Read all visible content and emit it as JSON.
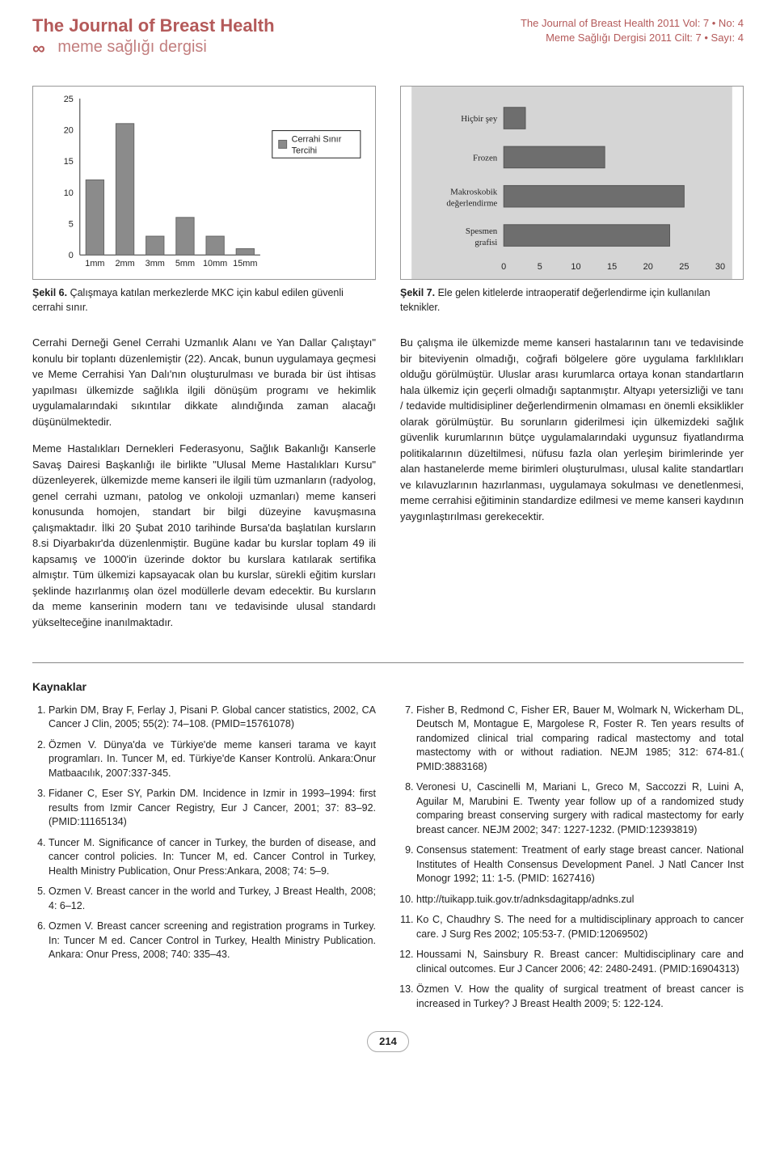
{
  "header": {
    "title_en": "The Journal of Breast Health",
    "title_tr": "meme sağlığı dergisi",
    "right_en": "The Journal of Breast Health 2011 Vol: 7 • No: 4",
    "right_tr": "Meme Sağlığı Dergisi 2011 Cilt: 7 • Sayı: 4"
  },
  "figure6": {
    "type": "bar",
    "orientation": "vertical",
    "categories": [
      "1mm",
      "2mm",
      "3mm",
      "5mm",
      "10mm",
      "15mm"
    ],
    "values": [
      12,
      21,
      3,
      6,
      3,
      1
    ],
    "bar_color": "#8b8b8b",
    "border_color": "#666666",
    "background": "#ffffff",
    "ylim": [
      0,
      25
    ],
    "ytick_step": 5,
    "legend_label": "Cerrahi Sınır Tercihi",
    "legend_box_w": 110,
    "axis_fontsize": 11,
    "caption_bold": "Şekil 6.",
    "caption_text": "Çalışmaya katılan merkezlerde MKC için kabul edilen güvenli cerrahi sınır."
  },
  "figure7": {
    "type": "bar",
    "orientation": "horizontal",
    "categories": [
      "Hiçbir şey",
      "Frozen",
      "Makroskobik değerlendirme",
      "Spesmen grafisi"
    ],
    "values": [
      3,
      14,
      25,
      23
    ],
    "bar_color": "#6e6e6e",
    "border_color": "#555555",
    "background": "#d5d5d5",
    "xlim": [
      0,
      30
    ],
    "xtick_step": 5,
    "axis_fontsize": 11,
    "label_fontfamily": "Georgia, serif",
    "caption_bold": "Şekil 7.",
    "caption_text": "Ele gelen kitlelerde intraoperatif değerlendirme için kullanılan teknikler."
  },
  "body": {
    "p1": "Cerrahi Derneği Genel Cerrahi Uzmanlık Alanı ve Yan Dallar Çalıştayı\" konulu bir toplantı düzenlemiştir (22). Ancak, bunun uygulamaya geçmesi ve Meme Cerrahisi Yan Dalı'nın oluşturulması ve burada bir üst ihtisas yapılması ülkemizde sağlıkla ilgili dönüşüm programı ve hekimlik uygulamalarındaki sıkıntılar dikkate alındığında zaman alacağı düşünülmektedir.",
    "p2": "Meme Hastalıkları Dernekleri Federasyonu, Sağlık Bakanlığı Kanserle Savaş Dairesi Başkanlığı ile birlikte \"Ulusal Meme Hastalıkları Kursu\" düzenleyerek, ülkemizde meme kanseri ile ilgili tüm uzmanların (radyolog, genel cerrahi uzmanı, patolog ve onkoloji uzmanları) meme kanseri konusunda homojen, standart bir bilgi düzeyine kavuşmasına çalışmaktadır. İlki 20 Şubat 2010 tarihinde Bursa'da başlatılan kursların 8.si Diyarbakır'da düzenlenmiştir. Bugüne kadar bu kurslar toplam 49 ili kapsamış ve 1000'in üzerinde doktor bu kurslara katılarak sertifika almıştır. Tüm ülkemizi kapsayacak olan bu kurslar, sürekli eğitim kursları şeklinde hazırlanmış olan özel modüllerle devam edecektir. Bu kursların da meme kanserinin modern tanı ve tedavisinde ulusal standardı yükselteceğine inanılmaktadır.",
    "p3": "Bu çalışma ile ülkemizde meme kanseri hastalarının tanı ve tedavisinde bir biteviyenin olmadığı, coğrafi bölgelere göre uygulama farklılıkları olduğu görülmüştür. Uluslar arası kurumlarca ortaya konan standartların hala ülkemiz için geçerli olmadığı saptanmıştır. Altyapı yetersizliği ve tanı / tedavide multidisipliner değerlendirmenin olmaması en önemli eksiklikler olarak görülmüştür. Bu sorunların giderilmesi için ülkemizdeki sağlık güvenlik kurumlarının bütçe uygulamalarındaki uygunsuz fiyatlandırma politikalarının düzeltilmesi, nüfusu fazla olan yerleşim birimlerinde yer alan hastanelerde meme birimleri oluşturulması, ulusal kalite standartları ve kılavuzlarının hazırlanması, uygulamaya sokulması ve denetlenmesi, meme cerrahisi eğitiminin standardize edilmesi ve meme kanseri kaydının yaygınlaştırılması gerekecektir."
  },
  "references": {
    "title": "Kaynaklar",
    "items": [
      "Parkin DM, Bray F, Ferlay J, Pisani P. Global cancer statistics, 2002, CA Cancer J Clin, 2005; 55(2): 74–108. (PMID=15761078)",
      "Özmen V. Dünya'da ve Türkiye'de meme kanseri tarama ve kayıt programları. In. Tuncer M, ed. Türkiye'de Kanser Kontrolü. Ankara:Onur Matbaacılık, 2007:337-345.",
      "Fidaner C, Eser SY, Parkin DM. Incidence in Izmir in 1993–1994: first results from Izmir Cancer Registry, Eur J Cancer, 2001; 37: 83–92. (PMID:11165134)",
      "Tuncer M. Significance of cancer in Turkey, the burden of disease, and cancer control policies. In: Tuncer M, ed. Cancer Control in Turkey, Health Ministry Publication, Onur Press:Ankara, 2008; 74: 5–9.",
      "Ozmen V. Breast cancer in the world and Turkey, J Breast Health, 2008; 4: 6–12.",
      "Ozmen V. Breast cancer screening and registration programs in Turkey. In: Tuncer M ed. Cancer Control in Turkey, Health Ministry Publication. Ankara: Onur Press, 2008; 740: 335–43.",
      "Fisher B, Redmond C, Fisher ER, Bauer M, Wolmark N, Wickerham DL, Deutsch M, Montague E, Margolese R, Foster R. Ten years results of randomized clinical trial comparing radical mastectomy and total mastectomy with or without radiation. NEJM 1985; 312: 674-81.( PMID:3883168)",
      "Veronesi U, Cascinelli M, Mariani L, Greco M, Saccozzi R, Luini A, Aguilar M, Marubini E. Twenty year follow up of a randomized study comparing breast conserving surgery with radical mastectomy for early breast cancer. NEJM 2002; 347: 1227-1232. (PMID:12393819)",
      "Consensus statement: Treatment of early stage breast cancer. National Institutes of Health Consensus Development Panel. J Natl Cancer Inst Monogr 1992; 11: 1-5. (PMID: 1627416)",
      "http://tuikapp.tuik.gov.tr/adnksdagitapp/adnks.zul",
      "Ko C, Chaudhry S. The need for a multidisciplinary approach to cancer care. J Surg Res 2002; 105:53-7. (PMID:12069502)",
      "Houssami N, Sainsbury R. Breast cancer: Multidisciplinary care and clinical outcomes. Eur J Cancer 2006; 42: 2480-2491. (PMID:16904313)",
      "Özmen V. How the quality of surgical treatment of breast cancer is increased in Turkey? J Breast Health 2009; 5: 122-124."
    ]
  },
  "page_number": "214"
}
